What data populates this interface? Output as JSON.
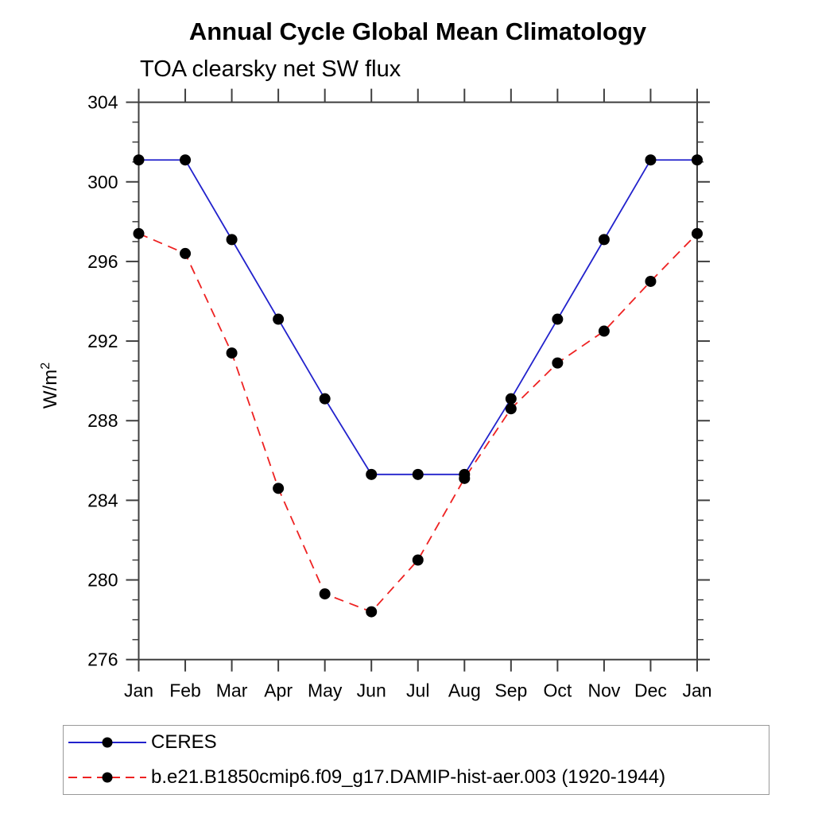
{
  "title": "Annual Cycle Global Mean Climatology",
  "subtitle": "TOA clearsky net SW flux",
  "ylabel": {
    "base": "W/m",
    "sup": "2",
    "unicode": "W/m²"
  },
  "legend": {
    "position": "bottom",
    "entries": [
      {
        "label": "CERES",
        "color": "#2222cc",
        "line_style": "solid",
        "marker": "black-dot"
      },
      {
        "label": "b.e21.B1850cmip6.f09_g17.DAMIP-hist-aer.003 (1920-1944)",
        "color": "#ee2222",
        "line_style": "dashed",
        "marker": "black-dot"
      }
    ]
  },
  "chart_data": {
    "type": "line",
    "title": "Annual Cycle Global Mean Climatology",
    "subtitle": "TOA clearsky net SW flux",
    "xlabel": "",
    "ylabel": "W/m²",
    "categories": [
      "Jan",
      "Feb",
      "Mar",
      "Apr",
      "May",
      "Jun",
      "Jul",
      "Aug",
      "Sep",
      "Oct",
      "Nov",
      "Dec",
      "Jan"
    ],
    "ylim": [
      276,
      304
    ],
    "yticks": [
      276,
      280,
      284,
      288,
      292,
      296,
      300,
      304
    ],
    "ytick_minor_interval": 1,
    "grid": false,
    "legend_position": "bottom",
    "marker_color": "#000000",
    "series": [
      {
        "id": "ceres",
        "name": "CERES",
        "color": "#2222cc",
        "dash": false,
        "marker": "black-dot",
        "values": [
          301.1,
          301.1,
          297.1,
          293.1,
          289.1,
          285.3,
          285.3,
          285.3,
          289.1,
          293.1,
          297.1,
          301.1,
          301.1
        ]
      },
      {
        "id": "model",
        "name": "b.e21.B1850cmip6.f09_g17.DAMIP-hist-aer.003 (1920-1944)",
        "color": "#ee2222",
        "dash": true,
        "marker": "black-dot",
        "values": [
          297.4,
          296.4,
          291.4,
          284.6,
          279.3,
          278.4,
          281.0,
          285.1,
          288.6,
          290.9,
          292.5,
          295.0,
          297.4
        ]
      }
    ]
  }
}
